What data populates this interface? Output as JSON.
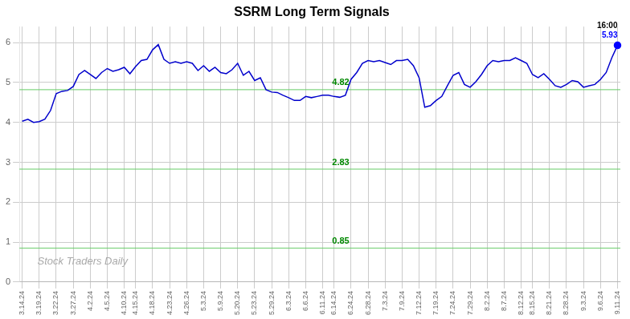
{
  "chart_data": {
    "type": "line",
    "title": "SSRM Long Term Signals",
    "watermark": "Stock Traders Daily",
    "categories": [
      "3.14.24",
      null,
      null,
      "3.19.24",
      null,
      null,
      "3.22.24",
      null,
      null,
      "3.27.24",
      null,
      null,
      "4.2.24",
      null,
      null,
      "4.5.24",
      null,
      null,
      "4.10.24",
      null,
      "4.15.24",
      null,
      null,
      "4.18.24",
      null,
      null,
      "4.23.24",
      null,
      null,
      "4.26.24",
      null,
      null,
      "5.3.24",
      null,
      null,
      "5.9.24",
      null,
      null,
      "5.20.24",
      null,
      null,
      "5.23.24",
      null,
      null,
      "5.29.24",
      null,
      null,
      "6.3.24",
      null,
      null,
      "6.6.24",
      null,
      null,
      "6.11.24",
      null,
      "6.14.24",
      null,
      null,
      "6.24.24",
      null,
      null,
      "6.28.24",
      null,
      null,
      "7.3.24",
      null,
      null,
      "7.9.24",
      null,
      null,
      "7.12.24",
      null,
      null,
      "7.19.24",
      null,
      null,
      "7.24.24",
      null,
      null,
      "7.29.24",
      null,
      null,
      "8.2.24",
      null,
      null,
      "8.7.24",
      null,
      null,
      "8.12.24",
      null,
      "8.15.24",
      null,
      null,
      "8.21.24",
      null,
      null,
      "8.28.24",
      null,
      null,
      "9.3.24",
      null,
      null,
      "9.6.24",
      null,
      null,
      "9.11.24"
    ],
    "values": [
      4.03,
      4.08,
      4.0,
      4.02,
      4.08,
      4.3,
      4.72,
      4.78,
      4.8,
      4.9,
      5.2,
      5.3,
      5.2,
      5.1,
      5.25,
      5.35,
      5.28,
      5.32,
      5.38,
      5.22,
      5.4,
      5.55,
      5.58,
      5.82,
      5.95,
      5.58,
      5.48,
      5.52,
      5.48,
      5.52,
      5.48,
      5.3,
      5.42,
      5.28,
      5.38,
      5.25,
      5.22,
      5.32,
      5.48,
      5.18,
      5.28,
      5.05,
      5.12,
      4.82,
      4.76,
      4.75,
      4.68,
      4.62,
      4.55,
      4.55,
      4.65,
      4.62,
      4.65,
      4.68,
      4.68,
      4.65,
      4.63,
      4.68,
      5.08,
      5.25,
      5.48,
      5.55,
      5.52,
      5.55,
      5.5,
      5.45,
      5.55,
      5.55,
      5.58,
      5.42,
      5.12,
      4.38,
      4.42,
      4.55,
      4.65,
      4.92,
      5.18,
      5.25,
      4.95,
      4.88,
      5.02,
      5.2,
      5.42,
      5.55,
      5.52,
      5.55,
      5.55,
      5.62,
      5.55,
      5.48,
      5.2,
      5.12,
      5.22,
      5.08,
      4.92,
      4.88,
      4.95,
      5.05,
      5.02,
      4.88,
      4.92,
      4.95,
      5.08,
      5.25,
      5.62,
      5.93
    ],
    "color": "#0000cc",
    "last_point_color": "#0000ff",
    "last_point_labels": [
      {
        "text": "16:00",
        "color": "#000000"
      },
      {
        "text": "5.93",
        "color": "#0000ff"
      }
    ],
    "hlines": [
      {
        "y": 4.82,
        "label": "4.82",
        "color": "#66cc66",
        "label_color": "#008800"
      },
      {
        "y": 2.83,
        "label": "2.83",
        "color": "#66cc66",
        "label_color": "#008800"
      },
      {
        "y": 0.85,
        "label": "0.85",
        "color": "#66cc66",
        "label_color": "#008800"
      }
    ],
    "ylim": [
      0,
      6.4
    ],
    "yticks": [
      0,
      1,
      2,
      3,
      4,
      5,
      6
    ],
    "grid": true
  }
}
